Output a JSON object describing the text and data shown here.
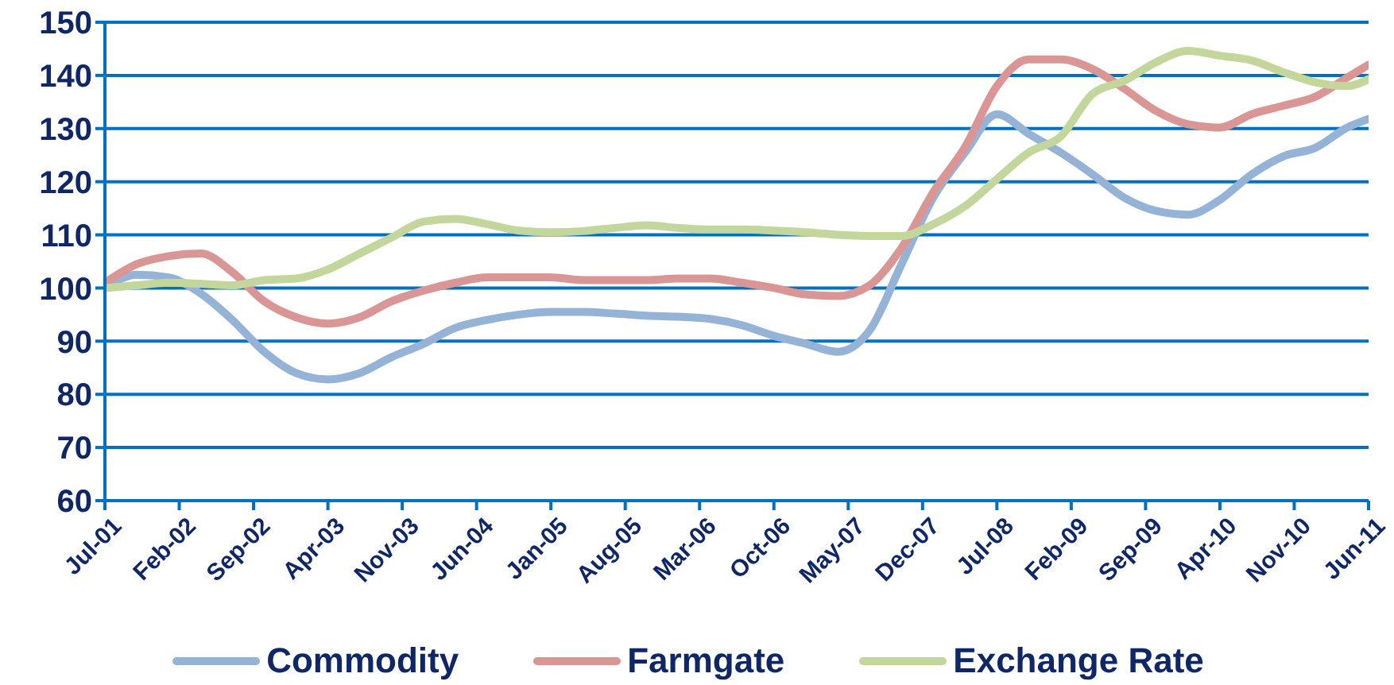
{
  "chart_data": {
    "type": "line",
    "x": [
      "2001-07",
      "2001-10",
      "2002-01",
      "2002-04",
      "2002-07",
      "2002-10",
      "2003-01",
      "2003-04",
      "2003-07",
      "2003-10",
      "2004-01",
      "2004-04",
      "2004-07",
      "2004-10",
      "2005-01",
      "2005-04",
      "2005-07",
      "2005-10",
      "2006-01",
      "2006-04",
      "2006-07",
      "2006-10",
      "2007-01",
      "2007-04",
      "2007-07",
      "2007-10",
      "2008-01",
      "2008-04",
      "2008-07",
      "2008-10",
      "2009-01",
      "2009-04",
      "2009-07",
      "2009-10",
      "2010-01",
      "2010-04",
      "2010-07",
      "2010-10",
      "2011-01",
      "2011-04",
      "2011-06"
    ],
    "series": [
      {
        "name": "Commodity",
        "color": "#95b3d7",
        "values": [
          100,
          102.5,
          102,
          99,
          94,
          88,
          84,
          82.8,
          84,
          87,
          89.5,
          92.5,
          94,
          95,
          95.5,
          95.5,
          95.2,
          94.8,
          94.6,
          94.2,
          93,
          91,
          89.5,
          88,
          92,
          104.4,
          117,
          125.5,
          132.7,
          129,
          125.5,
          121.4,
          117,
          114.5,
          113.8,
          116.6,
          121.4,
          124.8,
          126.4,
          130.2,
          131.8
        ]
      },
      {
        "name": "Farmgate",
        "color": "#d99694",
        "values": [
          101,
          104.5,
          106,
          106.5,
          103,
          97.5,
          94.5,
          93.3,
          94.5,
          97.5,
          99.5,
          101,
          102,
          102,
          102,
          101.5,
          101.5,
          101.5,
          101.8,
          101.8,
          101,
          100,
          98.8,
          98.5,
          100.5,
          107.5,
          118,
          126.5,
          138,
          143,
          143,
          141.2,
          137.5,
          133.3,
          130.8,
          130.2,
          132.7,
          134.3,
          136,
          139.6,
          142
        ]
      },
      {
        "name": "Exchange Rate",
        "color": "#c3d69b",
        "values": [
          100,
          100.5,
          101,
          100.8,
          100.5,
          101.5,
          101.8,
          103.5,
          106.5,
          109.5,
          112.5,
          113,
          112,
          110.8,
          110.5,
          110.7,
          111.3,
          111.8,
          111.3,
          111,
          111,
          110.8,
          110.5,
          110,
          109.8,
          109.8,
          112,
          115.4,
          120.5,
          125.5,
          128.5,
          136.5,
          139,
          142.5,
          144.6,
          143.7,
          142.8,
          140.6,
          138.7,
          138,
          139.3
        ]
      }
    ],
    "xlim": [
      "2001-07",
      "2011-06"
    ],
    "xticks": [
      {
        "value": "2001-07",
        "label": "Jul-01"
      },
      {
        "value": "2002-02",
        "label": "Feb-02"
      },
      {
        "value": "2002-09",
        "label": "Sep-02"
      },
      {
        "value": "2003-04",
        "label": "Apr-03"
      },
      {
        "value": "2003-11",
        "label": "Nov-03"
      },
      {
        "value": "2004-06",
        "label": "Jun-04"
      },
      {
        "value": "2005-01",
        "label": "Jan-05"
      },
      {
        "value": "2005-08",
        "label": "Aug-05"
      },
      {
        "value": "2006-03",
        "label": "Mar-06"
      },
      {
        "value": "2006-10",
        "label": "Oct-06"
      },
      {
        "value": "2007-05",
        "label": "May-07"
      },
      {
        "value": "2007-12",
        "label": "Dec-07"
      },
      {
        "value": "2008-07",
        "label": "Jul-08"
      },
      {
        "value": "2009-02",
        "label": "Feb-09"
      },
      {
        "value": "2009-09",
        "label": "Sep-09"
      },
      {
        "value": "2010-04",
        "label": "Apr-10"
      },
      {
        "value": "2010-11",
        "label": "Nov-10"
      },
      {
        "value": "2011-06",
        "label": "Jun-11"
      }
    ],
    "ylim": [
      60,
      150
    ],
    "yticks": [
      60,
      70,
      80,
      90,
      100,
      110,
      120,
      130,
      140,
      150
    ],
    "grid": "y",
    "legend": "bottom",
    "marker": "none",
    "line_style": "solid"
  }
}
